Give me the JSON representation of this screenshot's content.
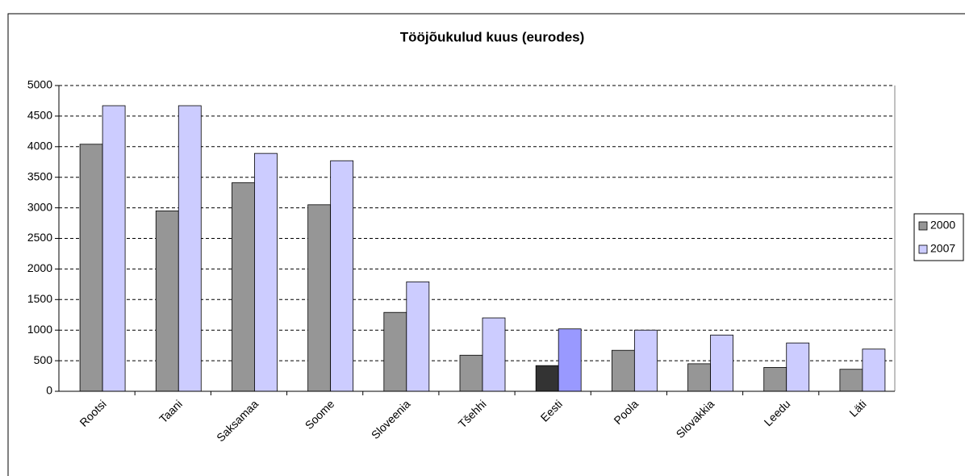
{
  "chart_data": {
    "type": "bar",
    "title": "Tööjõukulud kuus (eurodes)",
    "categories": [
      "Rootsi",
      "Taani",
      "Saksamaa",
      "Soome",
      "Sloveenia",
      "Tšehhi",
      "Eesti",
      "Poola",
      "Slovakkia",
      "Leedu",
      "Läti"
    ],
    "series": [
      {
        "name": "2000",
        "color": "#969696",
        "values": [
          4040,
          2950,
          3410,
          3050,
          1290,
          590,
          420,
          670,
          450,
          390,
          360
        ],
        "colors": [
          "#969696",
          "#969696",
          "#969696",
          "#969696",
          "#969696",
          "#969696",
          "#333333",
          "#969696",
          "#969696",
          "#969696",
          "#969696"
        ]
      },
      {
        "name": "2007",
        "color": "#ccccff",
        "values": [
          4670,
          4670,
          3890,
          3770,
          1790,
          1200,
          1020,
          1000,
          920,
          790,
          690
        ],
        "colors": [
          "#ccccff",
          "#ccccff",
          "#ccccff",
          "#ccccff",
          "#ccccff",
          "#ccccff",
          "#9999ff",
          "#ccccff",
          "#ccccff",
          "#ccccff",
          "#ccccff"
        ]
      }
    ],
    "ylim": [
      0,
      5000
    ],
    "yticks": [
      0,
      500,
      1000,
      1500,
      2000,
      2500,
      3000,
      3500,
      4000,
      4500,
      5000
    ],
    "grid": true,
    "legend": "right"
  }
}
